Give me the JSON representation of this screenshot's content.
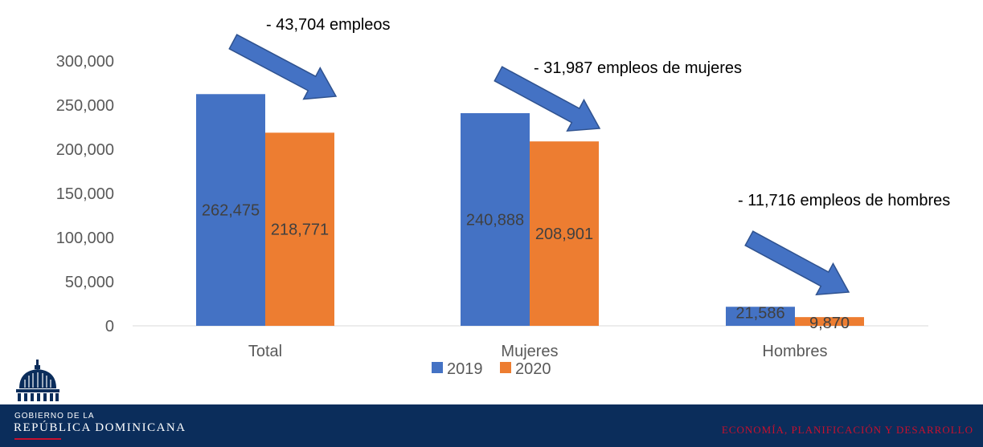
{
  "chart_data": {
    "type": "bar",
    "categories": [
      "Total",
      "Mujeres",
      "Hombres"
    ],
    "series": [
      {
        "name": "2019",
        "values": [
          262475,
          240888,
          21586
        ],
        "color": "#4472c4"
      },
      {
        "name": "2020",
        "values": [
          218771,
          208901,
          9870
        ],
        "color": "#ed7d31"
      }
    ],
    "data_labels": [
      [
        "262,475",
        "240,888",
        "21,586"
      ],
      [
        "218,771",
        "208,901",
        "9,870"
      ]
    ],
    "y_ticks": [
      "0",
      "50,000",
      "100,000",
      "150,000",
      "200,000",
      "250,000",
      "300,000"
    ],
    "ylim": [
      0,
      300000
    ],
    "grid": false,
    "legend_position": "bottom",
    "annotations": [
      "- 43,704 empleos",
      "- 31,987 empleos de mujeres",
      "- 11,716 empleos de hombres"
    ],
    "arrow_color": "#4472c4"
  },
  "footer": {
    "gov_line1": "GOBIERNO DE LA",
    "gov_line2": "REPÚBLICA DOMINICANA",
    "ministry": "ECONOMÍA, PLANIFICACIÓN Y DESARROLLO",
    "background_color": "#0b2d5b",
    "accent_color": "#c8102e"
  }
}
